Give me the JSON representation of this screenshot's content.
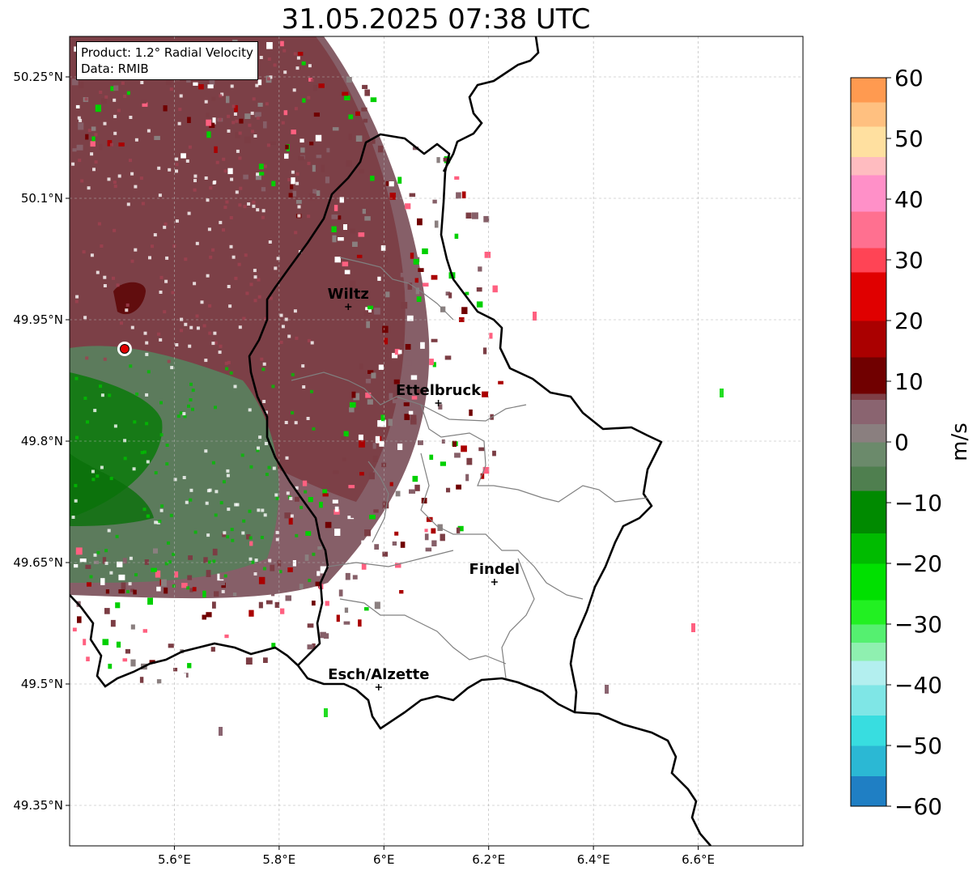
{
  "title": "31.05.2025 07:38 UTC",
  "info": {
    "product": "Product: 1.2° Radial Velocity",
    "data_source": "Data: RMIB"
  },
  "map": {
    "lon_range": [
      5.4,
      6.8
    ],
    "lat_range": [
      49.3,
      50.3
    ],
    "lon_ticks": [
      {
        "value": 5.6,
        "label": "5.6°E"
      },
      {
        "value": 5.8,
        "label": "5.8°E"
      },
      {
        "value": 6.0,
        "label": "6°E"
      },
      {
        "value": 6.2,
        "label": "6.2°E"
      },
      {
        "value": 6.4,
        "label": "6.4°E"
      },
      {
        "value": 6.6,
        "label": "6.6°E"
      }
    ],
    "lat_ticks": [
      {
        "value": 50.25,
        "label": "50.25°N"
      },
      {
        "value": 50.1,
        "label": "50.1°N"
      },
      {
        "value": 49.95,
        "label": "49.95°N"
      },
      {
        "value": 49.8,
        "label": "49.8°N"
      },
      {
        "value": 49.65,
        "label": "49.65°N"
      },
      {
        "value": 49.5,
        "label": "49.5°N"
      },
      {
        "value": 49.35,
        "label": "49.35°N"
      }
    ],
    "radar_site": {
      "lon": 5.505,
      "lat": 49.914
    },
    "cities": [
      {
        "name": "Wiltz",
        "lon": 5.932,
        "lat": 49.966
      },
      {
        "name": "Ettelbruck",
        "lon": 6.104,
        "lat": 49.847
      },
      {
        "name": "Findel",
        "lon": 6.211,
        "lat": 49.626
      },
      {
        "name": "Esch/Alzette",
        "lon": 5.99,
        "lat": 49.496
      }
    ],
    "gridlines": true,
    "colors": {
      "border": "#000000",
      "admin_lines": "#808080",
      "radar_site": "#e00000"
    }
  },
  "colorbar": {
    "label": "m/s",
    "range": [
      -60,
      60
    ],
    "ticks": [
      {
        "value": 60,
        "label": "60"
      },
      {
        "value": 50,
        "label": "50"
      },
      {
        "value": 40,
        "label": "40"
      },
      {
        "value": 30,
        "label": "30"
      },
      {
        "value": 20,
        "label": "20"
      },
      {
        "value": 10,
        "label": "10"
      },
      {
        "value": 0,
        "label": "0"
      },
      {
        "value": -10,
        "label": "−10"
      },
      {
        "value": -20,
        "label": "−20"
      },
      {
        "value": -30,
        "label": "−30"
      },
      {
        "value": -40,
        "label": "−40"
      },
      {
        "value": -50,
        "label": "−50"
      },
      {
        "value": -60,
        "label": "−60"
      }
    ],
    "stops": [
      {
        "from": -60,
        "to": -55,
        "color": "#1f7fc4"
      },
      {
        "from": -55,
        "to": -50,
        "color": "#2bb8d4"
      },
      {
        "from": -50,
        "to": -45,
        "color": "#38dde0"
      },
      {
        "from": -45,
        "to": -40,
        "color": "#7fe6e6"
      },
      {
        "from": -40,
        "to": -36,
        "color": "#b3efef"
      },
      {
        "from": -36,
        "to": -33,
        "color": "#8ff0b0"
      },
      {
        "from": -33,
        "to": -30,
        "color": "#55f070"
      },
      {
        "from": -30,
        "to": -26,
        "color": "#22f022"
      },
      {
        "from": -26,
        "to": -20,
        "color": "#00e000"
      },
      {
        "from": -20,
        "to": -15,
        "color": "#00bb00"
      },
      {
        "from": -15,
        "to": -8,
        "color": "#008a00"
      },
      {
        "from": -8,
        "to": -4,
        "color": "#4f7f4f"
      },
      {
        "from": -4,
        "to": 0,
        "color": "#6b8a6b"
      },
      {
        "from": 0,
        "to": 3,
        "color": "#8a7f7f"
      },
      {
        "from": 3,
        "to": 7,
        "color": "#8a6470"
      },
      {
        "from": 7,
        "to": 8,
        "color": "#7f3f46"
      },
      {
        "from": 8,
        "to": 14,
        "color": "#700000"
      },
      {
        "from": 14,
        "to": 20,
        "color": "#aa0000"
      },
      {
        "from": 20,
        "to": 28,
        "color": "#e00000"
      },
      {
        "from": 28,
        "to": 32,
        "color": "#ff4455"
      },
      {
        "from": 32,
        "to": 38,
        "color": "#ff7090"
      },
      {
        "from": 38,
        "to": 44,
        "color": "#ff90c8"
      },
      {
        "from": 44,
        "to": 47,
        "color": "#ffbcc0"
      },
      {
        "from": 47,
        "to": 52,
        "color": "#ffe0a0"
      },
      {
        "from": 52,
        "to": 56,
        "color": "#ffc080"
      },
      {
        "from": 56,
        "to": 60,
        "color": "#ff9a50"
      }
    ]
  }
}
